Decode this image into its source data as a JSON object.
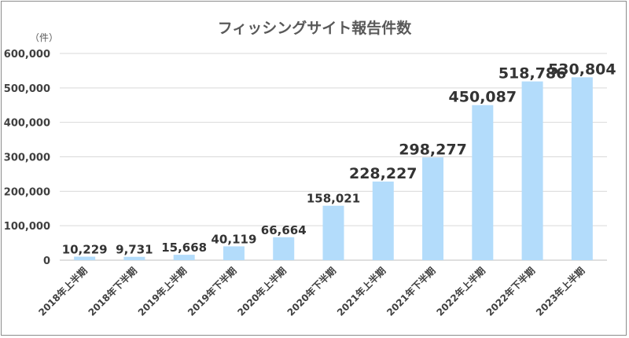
{
  "chart_data": {
    "type": "bar",
    "title": "フィッシングサイト報告件数",
    "unit_label": "（件）",
    "categories": [
      "2018年上半期",
      "2018年下半期",
      "2019年上半期",
      "2019年下半期",
      "2020年上半期",
      "2020年下半期",
      "2021年上半期",
      "2021年下半期",
      "2022年上半期",
      "2022年下半期",
      "2023年上半期"
    ],
    "values": [
      10229,
      9731,
      15668,
      40119,
      66664,
      158021,
      228227,
      298277,
      450087,
      518786,
      530804
    ],
    "data_labels": [
      "10,229",
      "9,731",
      "15,668",
      "40,119",
      "66,664",
      "158,021",
      "228,227",
      "298,277",
      "450,087",
      "518,786",
      "530,804"
    ],
    "ylim": [
      0,
      600000
    ],
    "yticks": [
      0,
      100000,
      200000,
      300000,
      400000,
      500000,
      600000
    ],
    "ytick_labels": [
      "0",
      "100,000",
      "200,000",
      "300,000",
      "400,000",
      "500,000",
      "600,000"
    ],
    "bar_color": "#b3dcfb",
    "grid": true,
    "legend": "none"
  }
}
